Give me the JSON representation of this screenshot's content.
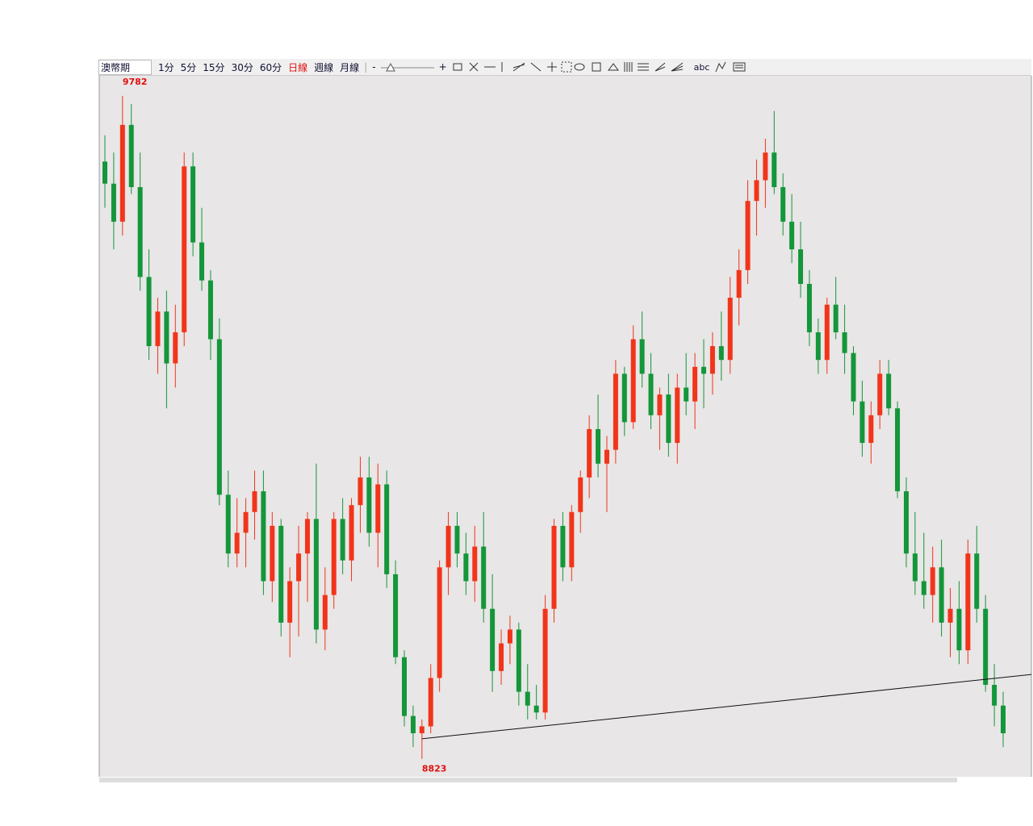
{
  "toolbar": {
    "symbol": "澳幣期",
    "periods": [
      "1分",
      "5分",
      "15分",
      "30分",
      "60分",
      "日線",
      "週線",
      "月線"
    ],
    "active_period": 5,
    "zoom_out": "-",
    "zoom_in": "+",
    "text_tool": "abc"
  },
  "chart_data": {
    "type": "candlestick",
    "up_color": "#f2341a",
    "down_color": "#14963a",
    "ylim": [
      8797,
      9811
    ],
    "open": [
      9687,
      9655,
      9600,
      9740,
      9650,
      9520,
      9420,
      9470,
      9395,
      9440,
      9680,
      9570,
      9515,
      9430,
      9205,
      9120,
      9150,
      9180,
      9210,
      9080,
      9160,
      9020,
      9080,
      9120,
      9170,
      9010,
      9060,
      9170,
      9110,
      9190,
      9230,
      9150,
      9220,
      9090,
      8970,
      8885,
      8860,
      8870,
      8940,
      9100,
      9160,
      9120,
      9080,
      9130,
      9040,
      8950,
      8990,
      9010,
      8920,
      8900,
      8890,
      9040,
      9160,
      9100,
      9180,
      9230,
      9300,
      9250,
      9270,
      9380,
      9310,
      9430,
      9380,
      9320,
      9350,
      9280,
      9360,
      9340,
      9390,
      9380,
      9420,
      9400,
      9490,
      9530,
      9630,
      9660,
      9700,
      9650,
      9600,
      9560,
      9510,
      9440,
      9400,
      9480,
      9440,
      9410,
      9340,
      9280,
      9320,
      9380,
      9330,
      9210,
      9120,
      9080,
      9060,
      9100,
      9020,
      9040,
      8980,
      9120,
      9040,
      8930,
      8900
    ],
    "high": [
      9725,
      9700,
      9782,
      9770,
      9700,
      9560,
      9490,
      9500,
      9480,
      9700,
      9700,
      9620,
      9530,
      9460,
      9240,
      9200,
      9200,
      9240,
      9240,
      9180,
      9170,
      9100,
      9160,
      9180,
      9250,
      9100,
      9180,
      9200,
      9200,
      9260,
      9260,
      9250,
      9240,
      9110,
      8980,
      8900,
      8880,
      8960,
      9110,
      9180,
      9180,
      9150,
      9160,
      9180,
      9090,
      9010,
      9030,
      9020,
      8960,
      8930,
      9060,
      9170,
      9180,
      9190,
      9240,
      9320,
      9350,
      9290,
      9400,
      9390,
      9450,
      9470,
      9410,
      9360,
      9380,
      9380,
      9410,
      9410,
      9430,
      9440,
      9470,
      9520,
      9560,
      9660,
      9690,
      9720,
      9760,
      9670,
      9640,
      9600,
      9530,
      9460,
      9490,
      9520,
      9480,
      9420,
      9370,
      9340,
      9400,
      9400,
      9340,
      9230,
      9180,
      9150,
      9130,
      9140,
      9070,
      9080,
      9140,
      9160,
      9060,
      8960,
      8920
    ],
    "low": [
      9620,
      9560,
      9580,
      9640,
      9500,
      9400,
      9380,
      9330,
      9360,
      9420,
      9550,
      9500,
      9400,
      9190,
      9100,
      9100,
      9100,
      9140,
      9060,
      9050,
      9000,
      8970,
      9000,
      9050,
      8990,
      8980,
      9040,
      9090,
      9080,
      9150,
      9130,
      9100,
      9070,
      8960,
      8870,
      8840,
      8823,
      8860,
      8920,
      9060,
      9100,
      9060,
      9050,
      9020,
      8920,
      8930,
      8960,
      8900,
      8880,
      8880,
      8880,
      9020,
      9080,
      9080,
      9150,
      9200,
      9230,
      9180,
      9250,
      9290,
      9300,
      9360,
      9300,
      9270,
      9260,
      9250,
      9320,
      9300,
      9330,
      9350,
      9370,
      9380,
      9450,
      9510,
      9580,
      9620,
      9640,
      9580,
      9540,
      9490,
      9420,
      9380,
      9380,
      9430,
      9380,
      9320,
      9260,
      9250,
      9300,
      9320,
      9200,
      9100,
      9060,
      9040,
      9020,
      9000,
      8970,
      8960,
      8960,
      9020,
      8920,
      8870,
      8840
    ],
    "close": [
      9655,
      9600,
      9740,
      9650,
      9520,
      9420,
      9470,
      9395,
      9440,
      9680,
      9570,
      9515,
      9430,
      9205,
      9120,
      9150,
      9180,
      9210,
      9080,
      9160,
      9020,
      9080,
      9120,
      9170,
      9010,
      9060,
      9170,
      9110,
      9190,
      9230,
      9150,
      9220,
      9090,
      8970,
      8885,
      8860,
      8870,
      8940,
      9100,
      9160,
      9120,
      9080,
      9130,
      9040,
      8950,
      8990,
      9010,
      8920,
      8900,
      8890,
      9040,
      9160,
      9100,
      9180,
      9230,
      9300,
      9250,
      9270,
      9380,
      9310,
      9430,
      9380,
      9320,
      9350,
      9280,
      9360,
      9340,
      9390,
      9380,
      9420,
      9400,
      9490,
      9530,
      9630,
      9660,
      9700,
      9650,
      9600,
      9560,
      9510,
      9440,
      9400,
      9480,
      9440,
      9410,
      9340,
      9280,
      9320,
      9380,
      9330,
      9210,
      9120,
      9080,
      9060,
      9100,
      9020,
      9040,
      8980,
      9120,
      9040,
      8930,
      8900,
      8860
    ],
    "trendline": {
      "x": [
        36,
        105.5
      ],
      "values": [
        8852,
        8945
      ]
    }
  }
}
